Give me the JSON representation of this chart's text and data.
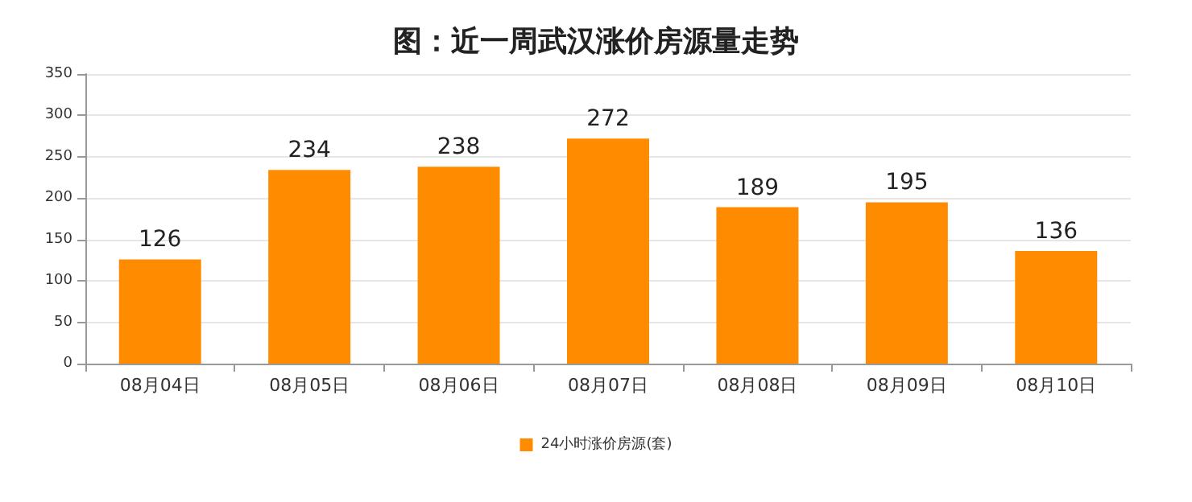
{
  "chart_data": {
    "type": "bar",
    "title": "图：近一周武汉涨价房源量走势",
    "categories": [
      "08月04日",
      "08月05日",
      "08月06日",
      "08月07日",
      "08月08日",
      "08月09日",
      "08月10日"
    ],
    "series": [
      {
        "name": "24小时涨价房源(套)",
        "color": "#ff8c00",
        "values": [
          126,
          234,
          238,
          272,
          189,
          195,
          136
        ]
      }
    ],
    "ylim": [
      0,
      350
    ],
    "yticks": [
      0,
      50,
      100,
      150,
      200,
      250,
      300,
      350
    ],
    "grid": "y",
    "legend": "bottom",
    "data_labels": true
  }
}
